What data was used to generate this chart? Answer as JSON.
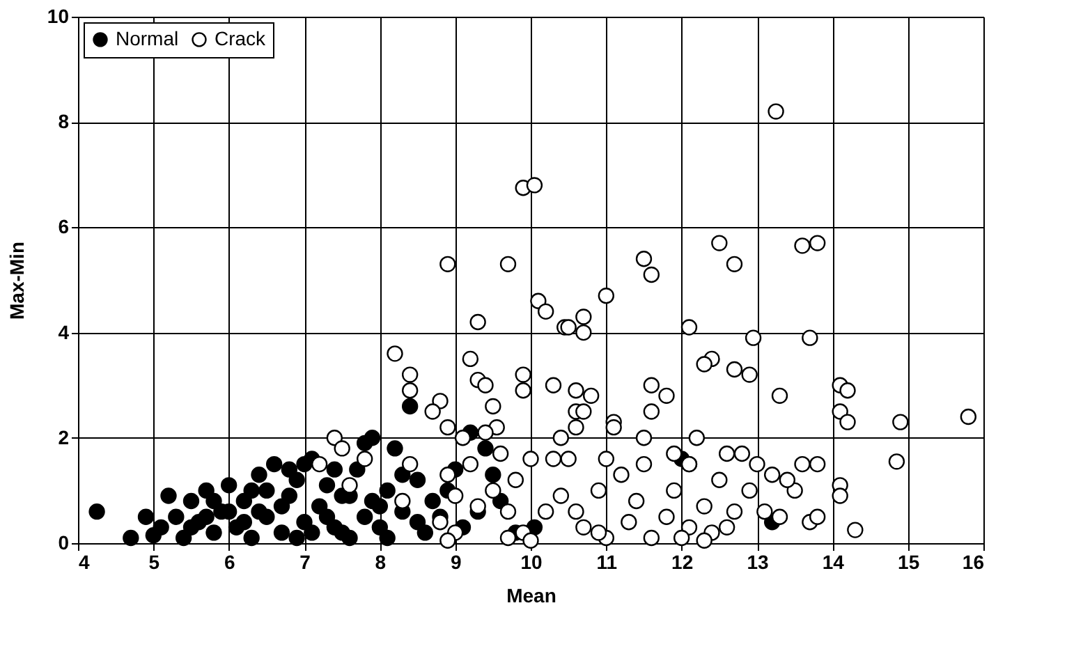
{
  "chart_data": {
    "type": "scatter",
    "xlabel": "Mean",
    "ylabel": "Max-Min",
    "xlim": [
      4,
      16
    ],
    "xticks": [
      4,
      5,
      6,
      7,
      8,
      9,
      10,
      11,
      12,
      13,
      14,
      15,
      16
    ],
    "ylim": [
      0,
      10
    ],
    "yticks": [
      0,
      2,
      4,
      6,
      8,
      10
    ],
    "grid": true,
    "legend": "top left",
    "marker": "circle",
    "series": [
      {
        "name": "Normal",
        "color": "#000000",
        "x": [
          4.25,
          4.7,
          4.9,
          5.1,
          5.2,
          5.3,
          5.4,
          5.5,
          5.6,
          5.7,
          5.8,
          5.9,
          6.0,
          6.1,
          6.2,
          6.3,
          6.4,
          6.5,
          6.6,
          6.7,
          6.8,
          6.9,
          7.0,
          7.1,
          7.2,
          7.3,
          7.4,
          7.5,
          7.6,
          7.7,
          7.8,
          7.9,
          8.0,
          8.1,
          8.2,
          8.3,
          8.4,
          8.5,
          8.6,
          8.7,
          8.8,
          9.0,
          9.1,
          9.2,
          9.5,
          9.6,
          9.8,
          10.05,
          12.0,
          12.1,
          13.2,
          7.8,
          7.0,
          6.5,
          6.0,
          5.5,
          5.0,
          6.2,
          6.7,
          7.3,
          7.9,
          8.5,
          8.1,
          6.9,
          6.4,
          5.8,
          7.6,
          7.1,
          8.3,
          6.8,
          7.4,
          6.3,
          5.7,
          7.5,
          8.0,
          8.9,
          9.3,
          9.4
        ],
        "values": [
          0.6,
          0.1,
          0.5,
          0.3,
          0.9,
          0.5,
          0.1,
          0.8,
          0.4,
          1.0,
          0.2,
          0.6,
          1.1,
          0.3,
          0.8,
          0.1,
          1.3,
          0.5,
          1.5,
          0.2,
          0.9,
          1.2,
          0.4,
          1.6,
          0.7,
          1.1,
          0.3,
          0.9,
          0.1,
          1.4,
          0.5,
          2.0,
          0.3,
          1.0,
          1.8,
          0.6,
          2.6,
          1.2,
          0.2,
          0.8,
          0.5,
          1.4,
          0.3,
          2.1,
          1.3,
          0.8,
          0.2,
          0.3,
          1.6,
          1.5,
          0.4,
          1.9,
          1.5,
          1.0,
          0.6,
          0.3,
          0.15,
          0.4,
          0.7,
          0.5,
          0.8,
          0.4,
          0.1,
          0.1,
          0.6,
          0.8,
          0.9,
          0.2,
          1.3,
          1.4,
          1.4,
          1.0,
          0.5,
          0.2,
          0.7,
          1.0,
          0.6,
          1.8
        ]
      },
      {
        "name": "Crack",
        "color": "#000000",
        "x": [
          8.2,
          8.4,
          8.4,
          8.9,
          9.7,
          9.3,
          9.2,
          9.3,
          9.9,
          10.05,
          10.1,
          9.9,
          9.9,
          10.2,
          10.45,
          10.5,
          10.7,
          10.7,
          11.0,
          10.6,
          10.8,
          10.6,
          11.5,
          11.6,
          11.6,
          11.6,
          12.1,
          12.4,
          12.3,
          12.5,
          12.7,
          12.7,
          12.9,
          12.95,
          13.25,
          13.3,
          13.6,
          13.8,
          13.7,
          14.1,
          14.2,
          14.1,
          14.2,
          14.1,
          14.1,
          14.3,
          14.9,
          14.85,
          15.8,
          13.6,
          13.5,
          13.2,
          13.0,
          13.1,
          13.7,
          12.8,
          12.6,
          12.5,
          12.3,
          12.1,
          12.4,
          11.9,
          11.8,
          11.5,
          11.4,
          11.3,
          11.1,
          11.2,
          11.0,
          10.9,
          10.7,
          10.5,
          10.4,
          10.3,
          10.2,
          10.0,
          9.9,
          9.8,
          9.7,
          9.6,
          9.55,
          9.5,
          9.4,
          9.3,
          9.2,
          9.1,
          9.0,
          8.9,
          8.8,
          8.9,
          8.8,
          8.7,
          8.4,
          8.3,
          7.8,
          7.6,
          7.4,
          7.5,
          7.2,
          9.0,
          10.0,
          11.0,
          12.0,
          12.6,
          13.3,
          12.3,
          11.6,
          10.6,
          9.7,
          8.9,
          10.9,
          11.9,
          12.1,
          12.9,
          13.4,
          13.8,
          9.4,
          9.5,
          10.7,
          11.8,
          10.4,
          10.3,
          10.6,
          11.1,
          13.8,
          12.7,
          11.5,
          12.2
        ],
        "values": [
          3.6,
          3.2,
          2.9,
          5.3,
          5.3,
          4.2,
          3.5,
          3.1,
          6.75,
          6.8,
          4.6,
          3.2,
          2.9,
          4.4,
          4.1,
          4.1,
          4.3,
          4.0,
          4.7,
          2.9,
          2.8,
          2.5,
          5.4,
          5.1,
          3.0,
          2.5,
          4.1,
          3.5,
          3.4,
          5.7,
          5.3,
          3.3,
          3.2,
          3.9,
          8.2,
          2.8,
          5.65,
          5.7,
          3.9,
          3.0,
          2.9,
          2.5,
          2.3,
          1.1,
          0.9,
          0.25,
          2.3,
          1.55,
          2.4,
          1.5,
          1.0,
          1.3,
          1.5,
          0.6,
          0.4,
          1.7,
          1.7,
          1.2,
          0.7,
          0.3,
          0.2,
          1.0,
          0.5,
          1.5,
          0.8,
          0.4,
          2.3,
          1.3,
          1.6,
          1.0,
          0.3,
          1.6,
          0.9,
          1.6,
          0.6,
          1.6,
          0.2,
          1.2,
          0.6,
          1.7,
          2.2,
          1.0,
          2.1,
          0.7,
          1.5,
          2.0,
          0.9,
          1.3,
          0.4,
          2.2,
          2.7,
          2.5,
          1.5,
          0.8,
          1.6,
          1.1,
          2.0,
          1.8,
          1.5,
          0.2,
          0.05,
          0.1,
          0.1,
          0.3,
          0.5,
          0.05,
          0.1,
          0.6,
          0.1,
          0.05,
          0.2,
          1.7,
          1.5,
          1.0,
          1.2,
          0.5,
          3.0,
          2.6,
          2.5,
          2.8,
          2.0,
          3.0,
          2.2,
          2.2,
          1.5,
          0.6,
          2.0,
          2.0
        ]
      }
    ]
  }
}
